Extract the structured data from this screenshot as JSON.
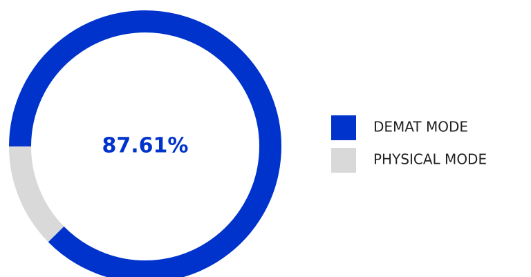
{
  "chart_data": {
    "type": "donut",
    "categories": [
      "DEMAT MODE",
      "PHYSICAL MODE"
    ],
    "values": [
      87.61,
      12.39
    ],
    "value_labels": [
      "87.61%",
      null
    ],
    "colors": [
      "#0033cc",
      "#d9d9d9"
    ],
    "legend": "right"
  }
}
